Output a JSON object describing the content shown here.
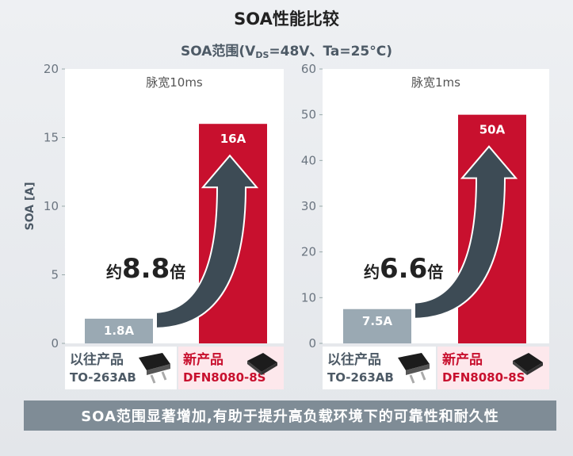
{
  "title": "SOA性能比较",
  "subtitle": {
    "main": "SOA范围(V",
    "sub": "DS",
    "rest": "=48V、Ta=25°C)"
  },
  "footer": "SOA范围显著增加,有助于提升高负载环境下的可靠性和耐久性",
  "colors": {
    "old": "#9aa9b3",
    "new": "#c8102e",
    "arrow": "#3d4b55",
    "new_bg": "#fde8ec"
  },
  "chart_data": [
    {
      "type": "bar",
      "title": "脉宽10ms",
      "ylabel": "SOA [A]",
      "ylim": [
        0,
        20
      ],
      "yticks": [
        0,
        5,
        10,
        15,
        20
      ],
      "categories": [
        "以往产品 TO-263AB",
        "新产品 DFN8080-8S"
      ],
      "values": [
        1.8,
        16
      ],
      "value_labels": [
        "1.8A",
        "16A"
      ],
      "multiplier": {
        "prefix": "约",
        "value": "8.8",
        "suffix": "倍"
      },
      "products": [
        {
          "name": "以往产品",
          "package": "TO-263AB",
          "icon": "to263-package-icon"
        },
        {
          "name": "新产品",
          "package": "DFN8080-8S",
          "icon": "dfn-package-icon"
        }
      ]
    },
    {
      "type": "bar",
      "title": "脉宽1ms",
      "ylabel": "",
      "ylim": [
        0,
        60
      ],
      "yticks": [
        0,
        10,
        20,
        30,
        40,
        50,
        60
      ],
      "categories": [
        "以往产品 TO-263AB",
        "新产品 DFN8080-8S"
      ],
      "values": [
        7.5,
        50
      ],
      "value_labels": [
        "7.5A",
        "50A"
      ],
      "multiplier": {
        "prefix": "约",
        "value": "6.6",
        "suffix": "倍"
      },
      "products": [
        {
          "name": "以往产品",
          "package": "TO-263AB",
          "icon": "to263-package-icon"
        },
        {
          "name": "新产品",
          "package": "DFN8080-8S",
          "icon": "dfn-package-icon"
        }
      ]
    }
  ]
}
